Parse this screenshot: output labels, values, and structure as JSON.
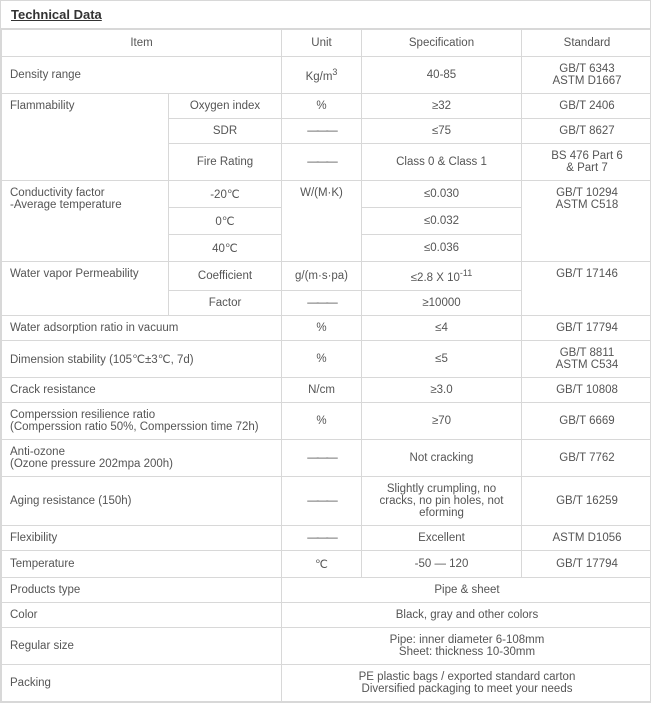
{
  "colors": {
    "border": "#d8d8d8",
    "text": "#555555",
    "title_text": "#333333",
    "background": "#ffffff"
  },
  "title": "Technical Data",
  "headers": {
    "item": "Item",
    "unit": "Unit",
    "spec": "Specification",
    "std": "Standard"
  },
  "dash": "———",
  "rows": {
    "density": {
      "label": "Density range",
      "unit_html": "Kg/m<sup>3</sup>",
      "spec": "40-85",
      "std_html": "GB/T 6343<br>ASTM D1667"
    },
    "flame": {
      "label": "Flammability",
      "oxy": {
        "sub": "Oxygen index",
        "unit": "%",
        "spec": "≥32",
        "std": "GB/T 2406"
      },
      "sdr": {
        "sub": "SDR",
        "unit": "———",
        "spec": "≤75",
        "std": "GB/T 8627"
      },
      "fire": {
        "sub": "Fire Rating",
        "unit": "———",
        "spec": "Class 0 & Class 1",
        "std_html": "BS 476 Part 6<br>& Part 7"
      }
    },
    "conduct": {
      "label_html": "Conductivity factor<br>-Average temperature",
      "m20": {
        "sub": "-20℃",
        "unit": "W/(M·K)",
        "spec": "≤0.030"
      },
      "p0": {
        "sub": "0℃",
        "spec": "≤0.032"
      },
      "p40": {
        "sub": "40℃",
        "spec": "≤0.036"
      },
      "std_html": "GB/T 10294<br>ASTM C518"
    },
    "vapor": {
      "label": "Water vapor Permeability",
      "coef": {
        "sub": "Coefficient",
        "unit": "g/(m·s·pa)",
        "spec_html": "≤2.8 X 10<sup>-11</sup>"
      },
      "fact": {
        "sub": "Factor",
        "unit": "———",
        "spec": "≥10000"
      },
      "std": "GB/T 17146"
    },
    "adsorp": {
      "label": "Water adsorption ratio in vacuum",
      "unit": "%",
      "spec": "≤4",
      "std": "GB/T 17794"
    },
    "dimstab": {
      "label": "Dimension stability (105℃±3℃, 7d)",
      "unit": "%",
      "spec": "≤5",
      "std_html": "GB/T 8811<br>ASTM C534"
    },
    "crack": {
      "label": "Crack resistance",
      "unit": "N/cm",
      "spec": "≥3.0",
      "std": "GB/T 10808"
    },
    "compress": {
      "label_html": "Comperssion resilience ratio<br>(Comperssion ratio 50%, Comperssion time 72h)",
      "unit": "%",
      "spec": "≥70",
      "std": "GB/T 6669"
    },
    "antiozone": {
      "label_html": "Anti-ozone<br>(Ozone pressure 202mpa 200h)",
      "unit": "———",
      "spec": "Not cracking",
      "std": "GB/T 7762"
    },
    "aging": {
      "label": "Aging resistance (150h)",
      "unit": "———",
      "spec_html": "Slightly crumpling, no<br>cracks, no pin holes, not<br>eforming",
      "std": "GB/T 16259"
    },
    "flex": {
      "label": "Flexibility",
      "unit": "———",
      "spec": "Excellent",
      "std": "ASTM D1056"
    },
    "temp": {
      "label": "Temperature",
      "unit": "℃",
      "spec": "-50 — 120",
      "std": "GB/T 17794"
    },
    "ptype": {
      "label": "Products type",
      "merged": "Pipe & sheet"
    },
    "color": {
      "label": "Color",
      "merged": "Black, gray and other colors"
    },
    "size": {
      "label": "Regular size",
      "merged_html": "Pipe: inner diameter 6-108mm<br>Sheet: thickness 10-30mm"
    },
    "pack": {
      "label": "Packing",
      "merged_html": "PE plastic bags / exported standard carton<br>Diversified packaging to meet your needs"
    }
  }
}
